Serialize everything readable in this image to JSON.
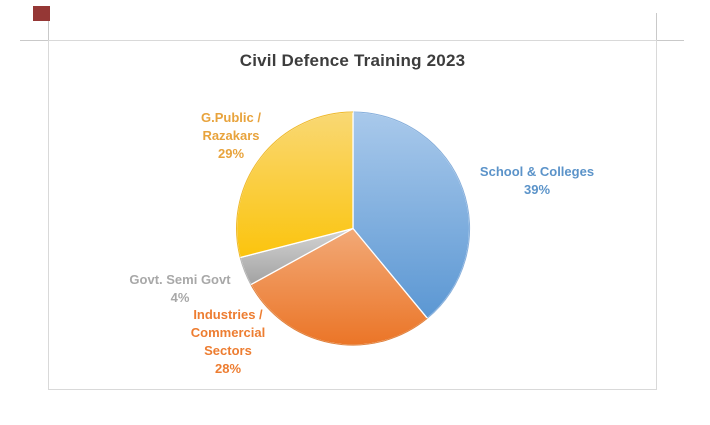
{
  "page": {
    "background": "#ffffff",
    "gridline_color": "#c9c9c9",
    "marker_color": "#953735"
  },
  "chart": {
    "title": "Civil Defence Training 2023",
    "title_color": "#3d3d3d",
    "frame_border_color": "#d9d9d9"
  },
  "chart_data": {
    "type": "pie",
    "title": "Civil Defence Training 2023",
    "categories": [
      "School & Colleges",
      "Industries / Commercial Sectors",
      "Govt. Semi Govt",
      "G.Public / Razakars"
    ],
    "values": [
      39,
      28,
      4,
      29
    ],
    "unit": "%",
    "start_angle_deg": 0,
    "direction": "clockwise",
    "legend": "none",
    "labels_position": "outside",
    "slice_styles": [
      {
        "name": "blue",
        "from": "#a9c9eb",
        "to": "#5b97d3",
        "stroke": "#85aedb"
      },
      {
        "name": "orange",
        "from": "#f2a977",
        "to": "#eb7527",
        "stroke": "#e0813c"
      },
      {
        "name": "gray",
        "from": "#d4d4d4",
        "to": "#a2a2a2",
        "stroke": "#b3b3b3"
      },
      {
        "name": "yellow",
        "from": "#f9d874",
        "to": "#fbc40d",
        "stroke": "#efb929"
      }
    ]
  },
  "labels": {
    "razakars": {
      "lines": [
        "G.Public /",
        "Razakars",
        "29%"
      ],
      "color": "#e8a33c"
    },
    "schools": {
      "lines": [
        "School & Colleges",
        "39%"
      ],
      "color": "#5b93c9"
    },
    "govt": {
      "lines": [
        "Govt. Semi Govt",
        "4%"
      ],
      "color": "#a8a8a8"
    },
    "industries": {
      "lines": [
        "Industries /",
        "Commercial",
        "Sectors",
        "28%"
      ],
      "color": "#ed7d31"
    }
  }
}
